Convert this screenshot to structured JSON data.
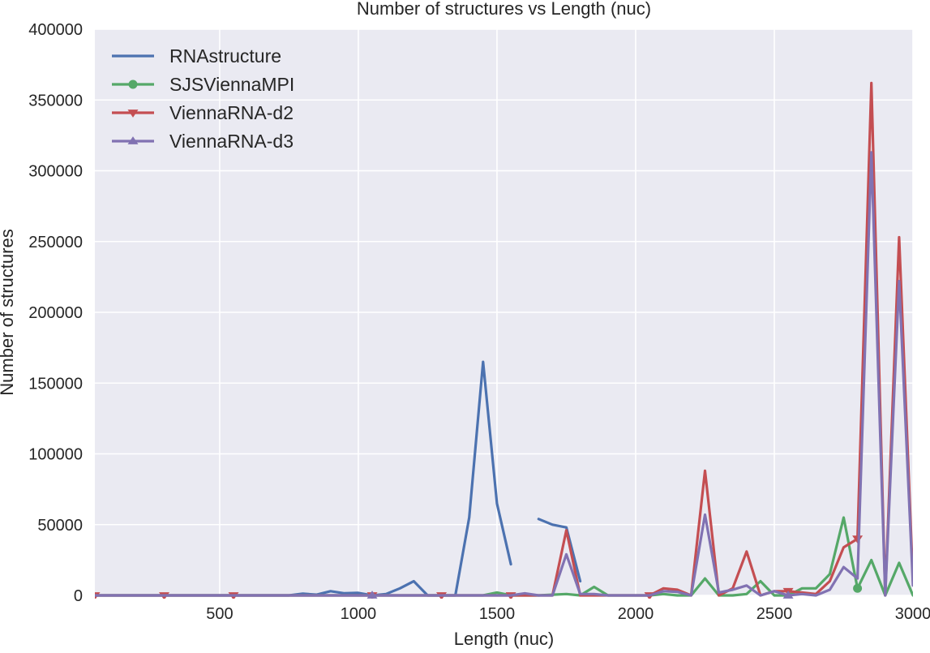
{
  "chart_data": {
    "type": "line",
    "title": "Number of structures vs Length (nuc)",
    "xlabel": "Length (nuc)",
    "ylabel": "Number of structures",
    "xlim": [
      50,
      3000
    ],
    "ylim": [
      0,
      400000
    ],
    "xticks": [
      500,
      1000,
      1500,
      2000,
      2500,
      3000
    ],
    "yticks": [
      0,
      50000,
      100000,
      150000,
      200000,
      250000,
      300000,
      350000,
      400000
    ],
    "grid": true,
    "legend_position": "top-left",
    "series": [
      {
        "name": "RNAstructure",
        "color": "#4c72b0",
        "marker": "none",
        "segments": [
          [
            [
              50,
              0
            ],
            [
              100,
              0
            ],
            [
              150,
              0
            ],
            [
              200,
              0
            ],
            [
              250,
              0
            ],
            [
              300,
              0
            ],
            [
              350,
              0
            ],
            [
              400,
              0
            ],
            [
              450,
              0
            ],
            [
              500,
              0
            ],
            [
              550,
              0
            ],
            [
              600,
              0
            ],
            [
              650,
              0
            ],
            [
              700,
              0
            ],
            [
              750,
              0
            ],
            [
              800,
              1200
            ],
            [
              850,
              500
            ],
            [
              900,
              3000
            ],
            [
              950,
              1500
            ],
            [
              1000,
              1800
            ],
            [
              1050,
              0
            ],
            [
              1100,
              1000
            ],
            [
              1150,
              5000
            ],
            [
              1200,
              10000
            ],
            [
              1250,
              0
            ],
            [
              1300,
              0
            ],
            [
              1350,
              0
            ],
            [
              1400,
              55000
            ],
            [
              1450,
              165000
            ],
            [
              1500,
              65000
            ],
            [
              1550,
              22000
            ]
          ],
          [
            [
              1650,
              54000
            ],
            [
              1700,
              50000
            ],
            [
              1750,
              48000
            ],
            [
              1800,
              10000
            ]
          ]
        ]
      },
      {
        "name": "SJSViennaMPI",
        "color": "#55a868",
        "marker": "circle",
        "points": [
          [
            50,
            0
          ],
          [
            300,
            0
          ],
          [
            550,
            0
          ],
          [
            800,
            0
          ],
          [
            1050,
            0
          ],
          [
            1300,
            0
          ],
          [
            1450,
            0
          ],
          [
            1500,
            2000
          ],
          [
            1550,
            0
          ],
          [
            1600,
            0
          ],
          [
            1650,
            0
          ],
          [
            1700,
            500
          ],
          [
            1750,
            1000
          ],
          [
            1800,
            0
          ],
          [
            1850,
            6000
          ],
          [
            1900,
            0
          ],
          [
            1950,
            0
          ],
          [
            2000,
            0
          ],
          [
            2050,
            0
          ],
          [
            2100,
            1000
          ],
          [
            2150,
            0
          ],
          [
            2200,
            0
          ],
          [
            2250,
            12000
          ],
          [
            2300,
            0
          ],
          [
            2350,
            0
          ],
          [
            2400,
            1000
          ],
          [
            2450,
            10000
          ],
          [
            2500,
            0
          ],
          [
            2550,
            0
          ],
          [
            2600,
            5000
          ],
          [
            2650,
            5000
          ],
          [
            2700,
            15000
          ],
          [
            2750,
            55000
          ],
          [
            2800,
            5000
          ],
          [
            2850,
            25000
          ],
          [
            2900,
            0
          ],
          [
            2950,
            23000
          ],
          [
            3000,
            0
          ]
        ],
        "marker_at": [
          2800
        ]
      },
      {
        "name": "ViennaRNA-d2",
        "color": "#c44e52",
        "marker": "triangle-down",
        "points": [
          [
            50,
            0
          ],
          [
            300,
            0
          ],
          [
            550,
            0
          ],
          [
            800,
            0
          ],
          [
            1050,
            0
          ],
          [
            1300,
            0
          ],
          [
            1450,
            0
          ],
          [
            1500,
            0
          ],
          [
            1550,
            0
          ],
          [
            1600,
            0
          ],
          [
            1650,
            0
          ],
          [
            1700,
            0
          ],
          [
            1750,
            46000
          ],
          [
            1800,
            0
          ],
          [
            1850,
            0
          ],
          [
            1900,
            0
          ],
          [
            1950,
            0
          ],
          [
            2000,
            0
          ],
          [
            2050,
            0
          ],
          [
            2100,
            5000
          ],
          [
            2150,
            4000
          ],
          [
            2200,
            0
          ],
          [
            2250,
            88000
          ],
          [
            2300,
            0
          ],
          [
            2350,
            5000
          ],
          [
            2400,
            31000
          ],
          [
            2450,
            0
          ],
          [
            2500,
            3000
          ],
          [
            2550,
            3000
          ],
          [
            2600,
            2000
          ],
          [
            2650,
            1000
          ],
          [
            2700,
            10000
          ],
          [
            2750,
            34000
          ],
          [
            2800,
            40000
          ],
          [
            2850,
            362000
          ],
          [
            2900,
            0
          ],
          [
            2950,
            253000
          ],
          [
            3000,
            10000
          ]
        ],
        "marker_at": [
          50,
          300,
          550,
          1050,
          1300,
          1550,
          2050,
          2550,
          2800
        ]
      },
      {
        "name": "ViennaRNA-d3",
        "color": "#8172b2",
        "marker": "triangle-up",
        "points": [
          [
            50,
            0
          ],
          [
            300,
            0
          ],
          [
            550,
            0
          ],
          [
            800,
            0
          ],
          [
            1050,
            0
          ],
          [
            1300,
            0
          ],
          [
            1450,
            0
          ],
          [
            1500,
            0
          ],
          [
            1550,
            0
          ],
          [
            1600,
            1500
          ],
          [
            1650,
            0
          ],
          [
            1700,
            0
          ],
          [
            1750,
            29000
          ],
          [
            1800,
            1000
          ],
          [
            1850,
            1000
          ],
          [
            1900,
            0
          ],
          [
            1950,
            0
          ],
          [
            2000,
            0
          ],
          [
            2050,
            0
          ],
          [
            2100,
            3000
          ],
          [
            2150,
            2500
          ],
          [
            2200,
            0
          ],
          [
            2250,
            57000
          ],
          [
            2300,
            2000
          ],
          [
            2350,
            4000
          ],
          [
            2400,
            7000
          ],
          [
            2450,
            0
          ],
          [
            2500,
            3000
          ],
          [
            2550,
            0
          ],
          [
            2600,
            1000
          ],
          [
            2650,
            0
          ],
          [
            2700,
            4000
          ],
          [
            2750,
            20000
          ],
          [
            2800,
            12000
          ],
          [
            2850,
            313000
          ],
          [
            2900,
            0
          ],
          [
            2950,
            222000
          ],
          [
            3000,
            7000
          ]
        ],
        "marker_at": [
          1050,
          2550
        ]
      }
    ]
  }
}
